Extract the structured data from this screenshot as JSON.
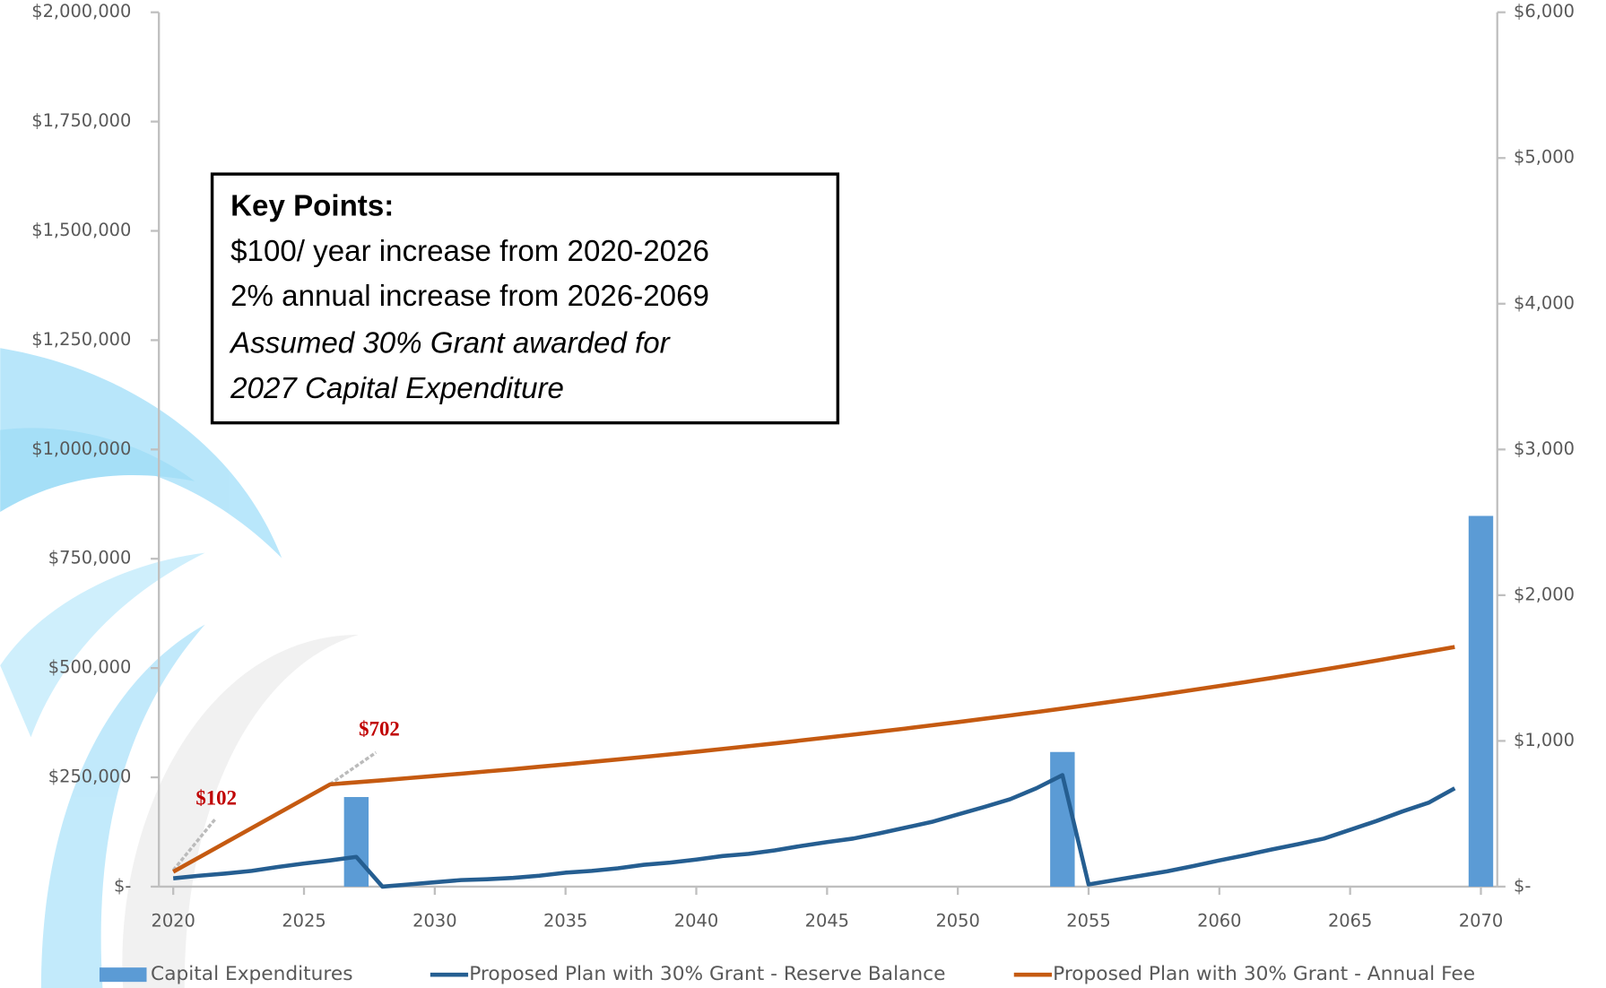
{
  "chart_data": {
    "type": "combo",
    "x": [
      2020,
      2021,
      2022,
      2023,
      2024,
      2025,
      2026,
      2027,
      2028,
      2029,
      2030,
      2031,
      2032,
      2033,
      2034,
      2035,
      2036,
      2037,
      2038,
      2039,
      2040,
      2041,
      2042,
      2043,
      2044,
      2045,
      2046,
      2047,
      2048,
      2049,
      2050,
      2051,
      2052,
      2053,
      2054,
      2055,
      2056,
      2057,
      2058,
      2059,
      2060,
      2061,
      2062,
      2063,
      2064,
      2065,
      2066,
      2067,
      2068,
      2069,
      2070
    ],
    "xlim": [
      2020,
      2070
    ],
    "xticks": [
      2020,
      2025,
      2030,
      2035,
      2040,
      2045,
      2050,
      2055,
      2060,
      2065,
      2070
    ],
    "ylim": [
      0,
      2000000
    ],
    "yticks": [
      {
        "value": 0,
        "label": "$-"
      },
      {
        "value": 250000,
        "label": "$250,000"
      },
      {
        "value": 500000,
        "label": "$500,000"
      },
      {
        "value": 750000,
        "label": "$750,000"
      },
      {
        "value": 1000000,
        "label": "$1,000,000"
      },
      {
        "value": 1250000,
        "label": "$1,250,000"
      },
      {
        "value": 1500000,
        "label": "$1,500,000"
      },
      {
        "value": 1750000,
        "label": "$1,750,000"
      },
      {
        "value": 2000000,
        "label": "$2,000,000"
      }
    ],
    "y2lim": [
      0,
      6000
    ],
    "y2ticks": [
      {
        "value": 0,
        "label": "$-"
      },
      {
        "value": 1000,
        "label": "$1,000"
      },
      {
        "value": 2000,
        "label": "$2,000"
      },
      {
        "value": 3000,
        "label": "$3,000"
      },
      {
        "value": 4000,
        "label": "$4,000"
      },
      {
        "value": 5000,
        "label": "$5,000"
      },
      {
        "value": 6000,
        "label": "$6,000"
      }
    ],
    "series": [
      {
        "name": "Capital Expenditures",
        "type": "bar",
        "color": "#5b9bd5",
        "values": [
          0,
          0,
          0,
          0,
          0,
          0,
          0,
          205000,
          0,
          0,
          0,
          0,
          0,
          0,
          0,
          0,
          0,
          0,
          0,
          0,
          0,
          0,
          0,
          0,
          0,
          0,
          0,
          0,
          0,
          0,
          0,
          0,
          0,
          0,
          308000,
          0,
          0,
          0,
          0,
          0,
          0,
          0,
          0,
          0,
          0,
          0,
          0,
          0,
          0,
          0,
          848000
        ]
      },
      {
        "name": "Proposed Plan with 30% Grant - Reserve Balance",
        "type": "line",
        "color": "#255e91",
        "values": [
          19000,
          25000,
          30000,
          36000,
          45000,
          53000,
          60000,
          68000,
          0,
          5000,
          10000,
          15000,
          17000,
          20000,
          25000,
          32000,
          36000,
          42000,
          50000,
          55000,
          62000,
          70000,
          75000,
          83000,
          93000,
          102000,
          110000,
          122000,
          135000,
          148000,
          165000,
          182000,
          200000,
          225000,
          255000,
          5000,
          15000,
          25000,
          35000,
          47000,
          60000,
          72000,
          85000,
          97000,
          110000,
          130000,
          150000,
          172000,
          192000,
          225000,
          null
        ]
      },
      {
        "name": "Proposed Plan with 30% Grant - Annual Fee",
        "type": "line",
        "axis": "y2",
        "color": "#c55a11",
        "values": [
          102,
          202,
          302,
          402,
          502,
          602,
          702,
          716,
          730,
          745,
          760,
          775,
          791,
          806,
          823,
          839,
          856,
          873,
          890,
          908,
          926,
          945,
          964,
          983,
          1003,
          1023,
          1043,
          1064,
          1085,
          1107,
          1129,
          1152,
          1175,
          1198,
          1222,
          1247,
          1272,
          1297,
          1323,
          1350,
          1377,
          1404,
          1432,
          1461,
          1490,
          1520,
          1551,
          1582,
          1613,
          1645,
          null
        ],
        "value_labels": [
          "$102",
          null,
          null,
          null,
          null,
          null,
          "$702",
          null,
          null,
          null,
          null,
          null,
          null,
          null,
          null,
          null,
          null,
          null,
          null,
          null,
          null,
          null,
          null,
          null,
          null,
          null,
          null,
          null,
          null,
          null,
          null,
          null,
          null,
          null,
          null,
          null,
          null,
          null,
          null,
          null,
          null,
          null,
          null,
          null,
          null,
          null,
          null,
          null,
          null,
          null,
          null
        ]
      }
    ],
    "annotation_box": {
      "heading": "Key Points:",
      "lines": [
        "$100/ year increase from 2020-2026",
        "2% annual increase from 2026-2069",
        "Assumed 30% Grant awarded for",
        "2027 Capital Expenditure"
      ]
    }
  }
}
